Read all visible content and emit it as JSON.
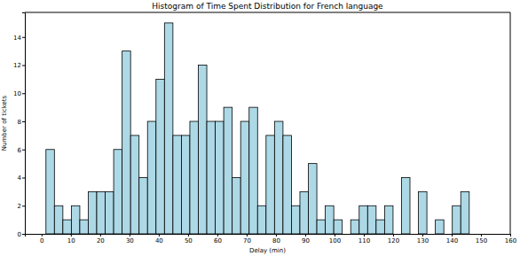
{
  "chart_data": {
    "type": "histogram",
    "title": "Histogram of Time Spent Distribution for French language",
    "x_label": "Delay (min)",
    "y_label": "Number of tickets",
    "bins": [
      1.5,
      4.39,
      7.28,
      10.17,
      13.06,
      15.95,
      18.84,
      21.73,
      24.62,
      27.51,
      30.4,
      33.29,
      36.18,
      39.07,
      41.96,
      44.85,
      47.74,
      50.63,
      53.52,
      56.41,
      59.3,
      62.19,
      65.08,
      67.97,
      70.86,
      73.75,
      76.64,
      79.53,
      82.42,
      85.31,
      88.2,
      91.09,
      93.98,
      96.87,
      99.76,
      102.65,
      105.54,
      108.43,
      111.32,
      114.21,
      117.1,
      119.99,
      122.88,
      125.77,
      128.66,
      131.55,
      134.44,
      137.33,
      140.22,
      143.11,
      146.0
    ],
    "values": [
      6,
      2,
      1,
      2,
      1,
      3,
      3,
      3,
      6,
      13,
      7,
      4,
      8,
      11,
      15,
      7,
      7,
      8,
      12,
      8,
      8,
      9,
      4,
      8,
      9,
      2,
      7,
      8,
      7,
      2,
      3,
      5,
      1,
      2,
      1,
      0,
      1,
      2,
      2,
      1,
      2,
      0,
      4,
      0,
      3,
      0,
      1,
      0,
      2,
      3
    ],
    "color": "#add8e6",
    "xlim": [
      -5.7,
      160
    ],
    "xticks": [
      0,
      10,
      20,
      30,
      40,
      50,
      60,
      70,
      80,
      90,
      100,
      110,
      120,
      130,
      140,
      150,
      160
    ],
    "ylim": [
      0,
      15.75
    ],
    "yticks": [
      0,
      2,
      4,
      6,
      8,
      10,
      12,
      14
    ],
    "grid": false
  }
}
